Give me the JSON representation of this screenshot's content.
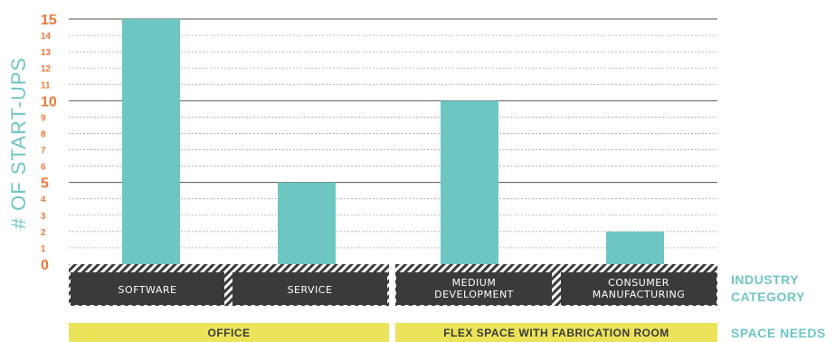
{
  "chart_data": {
    "type": "bar",
    "ylabel": "# OF START-UPS",
    "ylim": [
      0,
      15
    ],
    "yticks_major": [
      0,
      5,
      10,
      15
    ],
    "yticks_minor": [
      1,
      2,
      3,
      4,
      6,
      7,
      8,
      9,
      11,
      12,
      13,
      14
    ],
    "categories": [
      {
        "label_lines": [
          "SOFTWARE"
        ],
        "value": 15
      },
      {
        "label_lines": [
          "SERVICE"
        ],
        "value": 5
      },
      {
        "label_lines": [
          "MEDIUM",
          "DEVELOPMENT"
        ],
        "value": 10
      },
      {
        "label_lines": [
          "CONSUMER",
          "MANUFACTURING"
        ],
        "value": 2
      }
    ],
    "groups": [
      {
        "label": "OFFICE",
        "categories": [
          0,
          1
        ]
      },
      {
        "label": "FLEX SPACE WITH FABRICATION ROOM",
        "categories": [
          2,
          3
        ]
      }
    ],
    "side_labels": {
      "industry_lines": [
        "INDUSTRY",
        "CATEGORY"
      ],
      "space_needs": "SPACE NEEDS"
    },
    "grid": "horizontal",
    "colors": {
      "bar": "#6ec6c3",
      "axis_label": "#6ec6c3",
      "tick_major": "#f0763a",
      "tick_minor": "#f0763a",
      "category_box": "#3a3a3a",
      "category_text": "#ffffff",
      "group_box": "#ebe45a",
      "group_text": "#3a3a3a",
      "side_text": "#6ec6c3",
      "grid_major": "#555555",
      "grid_minor": "#999999"
    }
  }
}
